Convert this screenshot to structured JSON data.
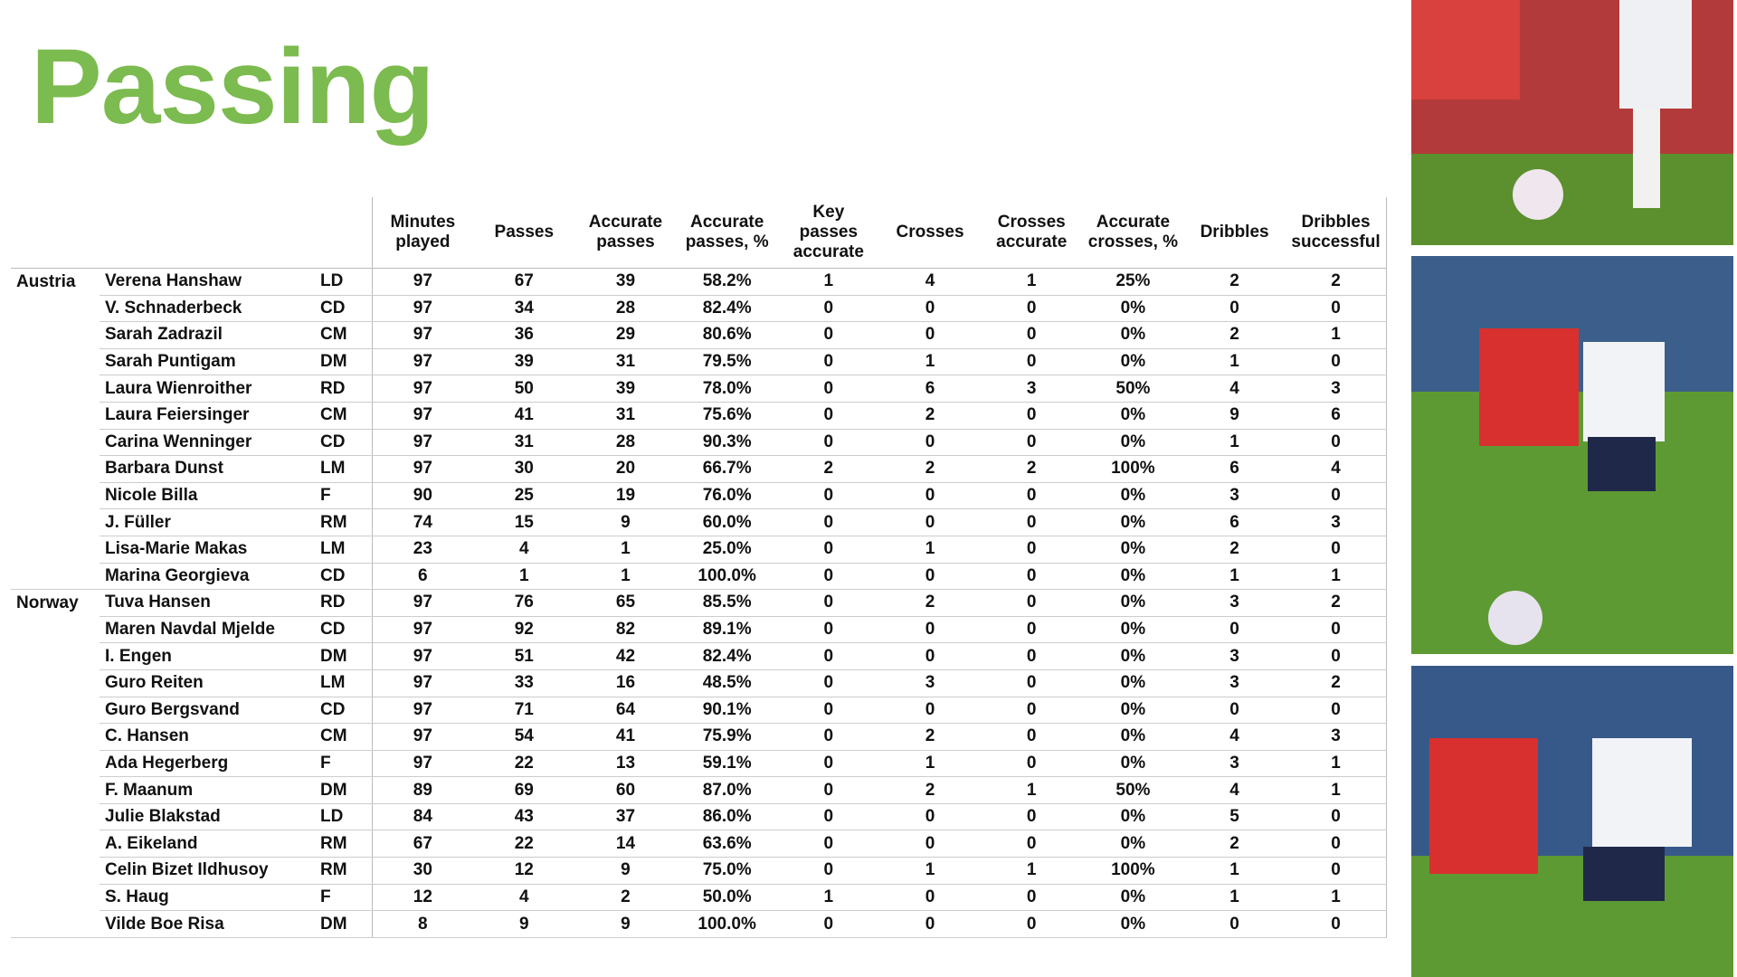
{
  "title": "Passing",
  "table": {
    "columns": [
      "Minutes played",
      "Passes",
      "Accurate passes",
      "Accurate passes, %",
      "Key passes accurate",
      "Crosses",
      "Crosses accurate",
      "Accurate crosses, %",
      "Dribbles",
      "Dribbles successful"
    ],
    "groups": [
      {
        "team": "Austria",
        "rows": [
          [
            "Verena Hanshaw",
            "LD",
            "97",
            "67",
            "39",
            "58.2%",
            "1",
            "4",
            "1",
            "25%",
            "2",
            "2"
          ],
          [
            "V. Schnaderbeck",
            "CD",
            "97",
            "34",
            "28",
            "82.4%",
            "0",
            "0",
            "0",
            "0%",
            "0",
            "0"
          ],
          [
            "Sarah Zadrazil",
            "CM",
            "97",
            "36",
            "29",
            "80.6%",
            "0",
            "0",
            "0",
            "0%",
            "2",
            "1"
          ],
          [
            "Sarah Puntigam",
            "DM",
            "97",
            "39",
            "31",
            "79.5%",
            "0",
            "1",
            "0",
            "0%",
            "1",
            "0"
          ],
          [
            "Laura Wienroither",
            "RD",
            "97",
            "50",
            "39",
            "78.0%",
            "0",
            "6",
            "3",
            "50%",
            "4",
            "3"
          ],
          [
            "Laura Feiersinger",
            "CM",
            "97",
            "41",
            "31",
            "75.6%",
            "0",
            "2",
            "0",
            "0%",
            "9",
            "6"
          ],
          [
            "Carina Wenninger",
            "CD",
            "97",
            "31",
            "28",
            "90.3%",
            "0",
            "0",
            "0",
            "0%",
            "1",
            "0"
          ],
          [
            "Barbara Dunst",
            "LM",
            "97",
            "30",
            "20",
            "66.7%",
            "2",
            "2",
            "2",
            "100%",
            "6",
            "4"
          ],
          [
            "Nicole Billa",
            "F",
            "90",
            "25",
            "19",
            "76.0%",
            "0",
            "0",
            "0",
            "0%",
            "3",
            "0"
          ],
          [
            "J. Füller",
            "RM",
            "74",
            "15",
            "9",
            "60.0%",
            "0",
            "0",
            "0",
            "0%",
            "6",
            "3"
          ],
          [
            "Lisa-Marie Makas",
            "LM",
            "23",
            "4",
            "1",
            "25.0%",
            "0",
            "1",
            "0",
            "0%",
            "2",
            "0"
          ],
          [
            "Marina Georgieva",
            "CD",
            "6",
            "1",
            "1",
            "100.0%",
            "0",
            "0",
            "0",
            "0%",
            "1",
            "1"
          ]
        ]
      },
      {
        "team": "Norway",
        "rows": [
          [
            "Tuva Hansen",
            "RD",
            "97",
            "76",
            "65",
            "85.5%",
            "0",
            "2",
            "0",
            "0%",
            "3",
            "2"
          ],
          [
            "Maren Navdal Mjelde",
            "CD",
            "97",
            "92",
            "82",
            "89.1%",
            "0",
            "0",
            "0",
            "0%",
            "0",
            "0"
          ],
          [
            "I. Engen",
            "DM",
            "97",
            "51",
            "42",
            "82.4%",
            "0",
            "0",
            "0",
            "0%",
            "3",
            "0"
          ],
          [
            "Guro Reiten",
            "LM",
            "97",
            "33",
            "16",
            "48.5%",
            "0",
            "3",
            "0",
            "0%",
            "3",
            "2"
          ],
          [
            "Guro Bergsvand",
            "CD",
            "97",
            "71",
            "64",
            "90.1%",
            "0",
            "0",
            "0",
            "0%",
            "0",
            "0"
          ],
          [
            "C. Hansen",
            "CM",
            "97",
            "54",
            "41",
            "75.9%",
            "0",
            "2",
            "0",
            "0%",
            "4",
            "3"
          ],
          [
            "Ada Hegerberg",
            "F",
            "97",
            "22",
            "13",
            "59.1%",
            "0",
            "1",
            "0",
            "0%",
            "3",
            "1"
          ],
          [
            "F. Maanum",
            "DM",
            "89",
            "69",
            "60",
            "87.0%",
            "0",
            "2",
            "1",
            "50%",
            "4",
            "1"
          ],
          [
            "Julie Blakstad",
            "LD",
            "84",
            "43",
            "37",
            "86.0%",
            "0",
            "0",
            "0",
            "0%",
            "5",
            "0"
          ],
          [
            "A. Eikeland",
            "RM",
            "67",
            "22",
            "14",
            "63.6%",
            "0",
            "0",
            "0",
            "0%",
            "2",
            "0"
          ],
          [
            "Celin Bizet Ildhusoy",
            "RM",
            "30",
            "12",
            "9",
            "75.0%",
            "0",
            "1",
            "1",
            "100%",
            "1",
            "0"
          ],
          [
            "S. Haug",
            "F",
            "12",
            "4",
            "2",
            "50.0%",
            "1",
            "0",
            "0",
            "0%",
            "1",
            "1"
          ],
          [
            "Vilde Boe Risa",
            "DM",
            "8",
            "9",
            "9",
            "100.0%",
            "0",
            "0",
            "0",
            "0%",
            "0",
            "0"
          ]
        ]
      }
    ]
  }
}
